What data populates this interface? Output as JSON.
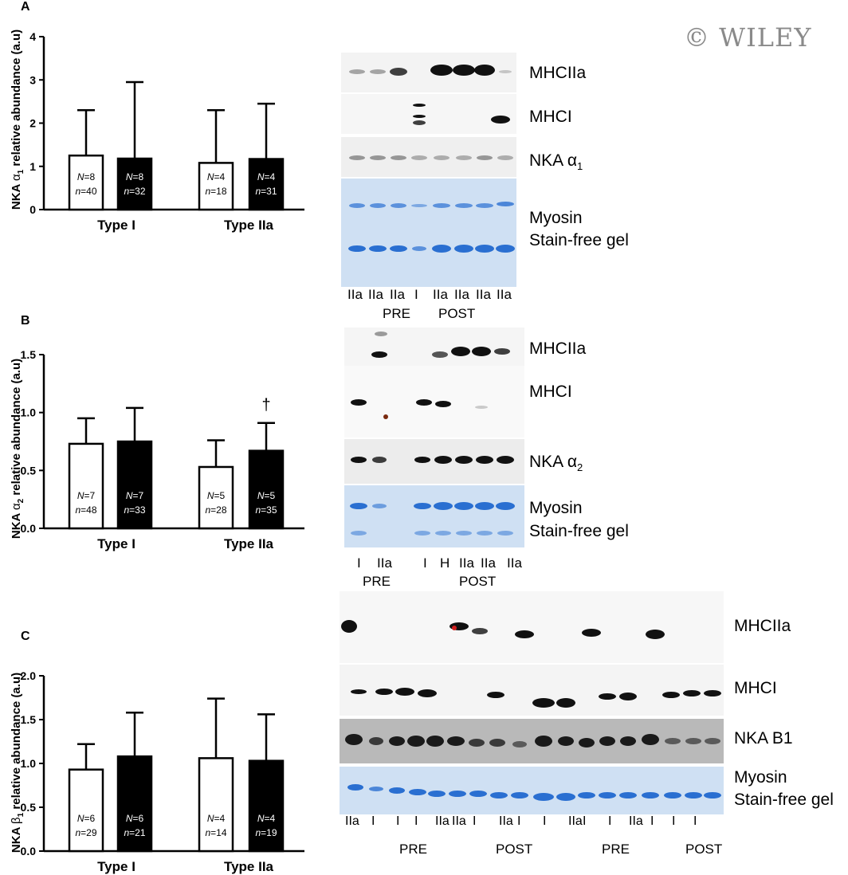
{
  "watermark": "© WILEY",
  "panels": [
    {
      "letter": "A",
      "ylabel_main": "NKA ",
      "ylabel_sym": "α",
      "ylabel_sub": "1",
      "ylabel_rest": " relative abundance (a.u)"
    },
    {
      "letter": "B",
      "ylabel_main": "NKA ",
      "ylabel_sym": "α",
      "ylabel_sub": "2",
      "ylabel_rest": " relative abundance (a.u)"
    },
    {
      "letter": "C",
      "ylabel_main": "NKA ",
      "ylabel_sym": "β",
      "ylabel_sub": "1",
      "ylabel_rest": " relative abundance (a.u)"
    }
  ],
  "chart_data": [
    {
      "type": "bar",
      "panel": "A",
      "categories": [
        "Type I",
        "Type IIa"
      ],
      "series": [
        {
          "fill": "#ffffff",
          "values": [
            1.25,
            1.08
          ],
          "sd_upper": [
            2.3,
            2.3
          ],
          "N": [
            "8",
            "4"
          ],
          "n": [
            "40",
            "18"
          ]
        },
        {
          "fill": "#000000",
          "values": [
            1.18,
            1.17
          ],
          "sd_upper": [
            2.95,
            2.45
          ],
          "N": [
            "8",
            "4"
          ],
          "n": [
            "32",
            "31"
          ]
        }
      ],
      "ylim": [
        0,
        4
      ],
      "yticks": [
        "0",
        "1",
        "2",
        "3",
        "4"
      ],
      "ytick_values": [
        0,
        1,
        2,
        3,
        4
      ],
      "annotations": []
    },
    {
      "type": "bar",
      "panel": "B",
      "categories": [
        "Type I",
        "Type IIa"
      ],
      "series": [
        {
          "fill": "#ffffff",
          "values": [
            0.73,
            0.53
          ],
          "sd_upper": [
            0.95,
            0.76
          ],
          "N": [
            "7",
            "5"
          ],
          "n": [
            "48",
            "28"
          ]
        },
        {
          "fill": "#000000",
          "values": [
            0.75,
            0.67
          ],
          "sd_upper": [
            1.04,
            0.91
          ],
          "N": [
            "7",
            "5"
          ],
          "n": [
            "33",
            "35"
          ]
        }
      ],
      "ylim": [
        0,
        1.5
      ],
      "yticks": [
        "0.0",
        "0.5",
        "1.0",
        "1.5"
      ],
      "ytick_values": [
        0,
        0.5,
        1.0,
        1.5
      ],
      "annotations": [
        {
          "text": "†",
          "category": 1,
          "series": 1
        }
      ]
    },
    {
      "type": "bar",
      "panel": "C",
      "categories": [
        "Type I",
        "Type IIa"
      ],
      "series": [
        {
          "fill": "#ffffff",
          "values": [
            0.93,
            1.06
          ],
          "sd_upper": [
            1.22,
            1.74
          ],
          "N": [
            "6",
            "4"
          ],
          "n": [
            "29",
            "14"
          ]
        },
        {
          "fill": "#000000",
          "values": [
            1.08,
            1.03
          ],
          "sd_upper": [
            1.58,
            1.56
          ],
          "N": [
            "6",
            "4"
          ],
          "n": [
            "21",
            "19"
          ]
        }
      ],
      "ylim": [
        0,
        2.0
      ],
      "yticks": [
        "0.0",
        "0.5",
        "1.0",
        "1.5",
        "2.0"
      ],
      "ytick_values": [
        0,
        0.5,
        1.0,
        1.5,
        2.0
      ],
      "annotations": []
    }
  ],
  "blots": {
    "A": {
      "rows": [
        {
          "label": "MHCIIa"
        },
        {
          "label": "MHCI"
        },
        {
          "label": "NKA α",
          "sub": "1"
        },
        {
          "label": "Myosin"
        },
        {
          "label": "Stain-free gel"
        }
      ],
      "lanes": [
        "IIa",
        "IIa",
        "IIa",
        "I",
        "IIa",
        "IIa",
        "IIa",
        "IIa"
      ],
      "groups": [
        "PRE",
        "POST"
      ]
    },
    "B": {
      "rows": [
        {
          "label": "MHCIIa"
        },
        {
          "label": "MHCI"
        },
        {
          "label": "NKA α",
          "sub": "2"
        },
        {
          "label": "Myosin"
        },
        {
          "label": "Stain-free gel"
        }
      ],
      "lanes": [
        "I",
        "IIa",
        "I",
        "H",
        "IIa",
        "IIa",
        "IIa"
      ],
      "groups": [
        "PRE",
        "POST"
      ]
    },
    "C": {
      "rows": [
        {
          "label": "MHCIIa"
        },
        {
          "label": "MHCI"
        },
        {
          "label": "NKA B1"
        },
        {
          "label": "Myosin"
        },
        {
          "label": "Stain-free gel"
        }
      ],
      "lanes": [
        "IIa",
        "I",
        "I",
        "I",
        "IIa",
        "IIa",
        "I",
        "IIa",
        "I",
        "I",
        "IIa",
        "I",
        "I",
        "IIa",
        "I",
        "I",
        "I"
      ],
      "groups": [
        "PRE",
        "POST",
        "PRE",
        "POST"
      ]
    }
  }
}
